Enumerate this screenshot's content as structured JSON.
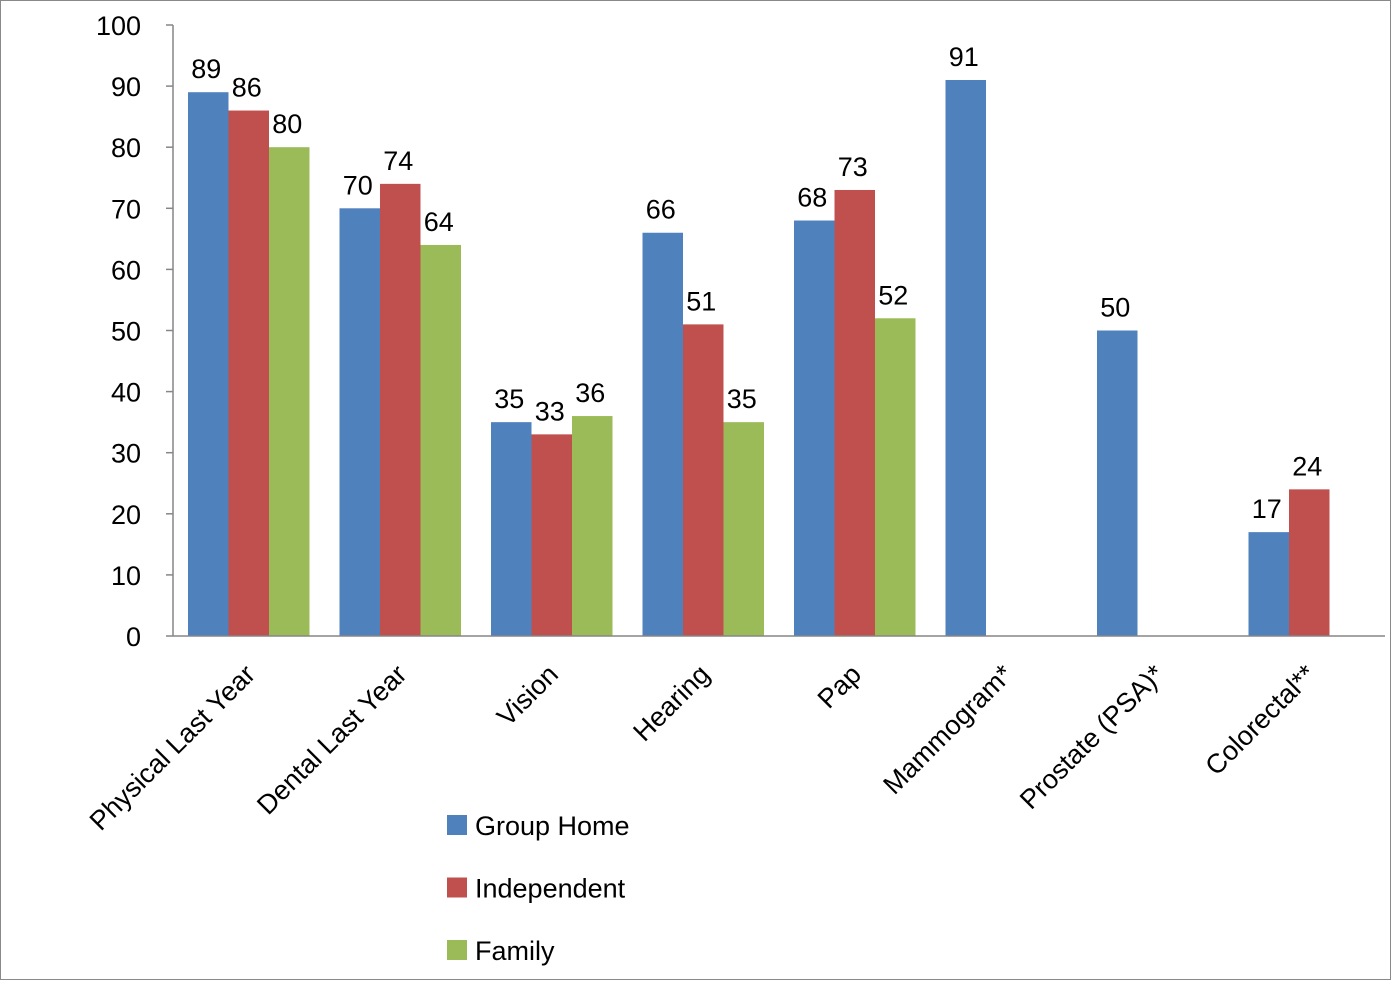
{
  "chart_data": {
    "type": "bar",
    "categories": [
      "Physical Last Year",
      "Dental Last Year",
      "Vision",
      "Hearing",
      "Pap",
      "Mammogram*",
      "Prostate (PSA)*",
      "Colorectal**"
    ],
    "series": [
      {
        "name": "Group Home",
        "color": "#4F81BD",
        "values": [
          89,
          70,
          35,
          66,
          68,
          91,
          50,
          17
        ]
      },
      {
        "name": "Independent",
        "color": "#C0504D",
        "values": [
          86,
          74,
          33,
          51,
          73,
          null,
          null,
          24
        ]
      },
      {
        "name": "Family",
        "color": "#9BBB59",
        "values": [
          80,
          64,
          36,
          35,
          52,
          null,
          null,
          null
        ]
      }
    ],
    "ylim": [
      0,
      100
    ],
    "yticks": [
      0,
      10,
      20,
      30,
      40,
      50,
      60,
      70,
      80,
      90,
      100
    ],
    "grid": false,
    "legend_position": "bottom",
    "data_labels": true
  }
}
